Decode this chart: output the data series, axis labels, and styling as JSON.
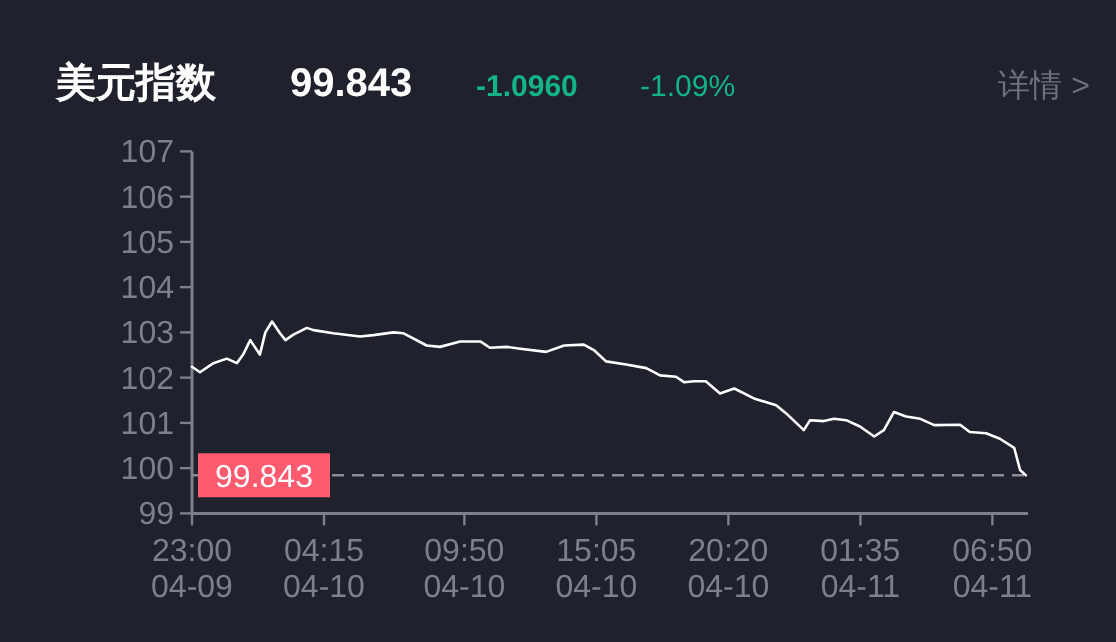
{
  "chart_data": {
    "type": "line",
    "title": "美元指数",
    "annotations": [
      "99.843",
      "-1.0960",
      "-1.09%",
      "详情 >"
    ],
    "x": [
      "--04-09T23:00",
      "--04-09T23:19",
      "--04-09T23:51",
      "--04-10T00:23",
      "--04-10T00:47",
      "--04-10T01:02",
      "--04-10T01:19",
      "--04-10T01:42",
      "--04-10T01:55",
      "--04-10T02:11",
      "--04-10T02:30",
      "--04-10T02:43",
      "--04-10T03:02",
      "--04-10T03:34",
      "--04-10T03:50",
      "--04-10T04:37",
      "--04-10T05:41",
      "--04-10T06:13",
      "--04-10T07:01",
      "--04-10T07:25",
      "--04-10T08:20",
      "--04-10T08:52",
      "--04-10T09:40",
      "--04-10T10:28",
      "--04-10T10:51",
      "--04-10T11:31",
      "--04-10T12:03",
      "--04-10T13:05",
      "--04-10T13:48",
      "--04-10T14:35",
      "--04-10T14:59",
      "--04-10T15:28",
      "--04-10T16:16",
      "--04-10T17:04",
      "--04-10T17:37",
      "--04-10T18:15",
      "--04-10T18:34",
      "--04-10T18:58",
      "--04-10T19:26",
      "--04-10T20:00",
      "--04-10T20:34",
      "--04-10T21:21",
      "--04-10T22:14",
      "--04-10T22:38",
      "--04-10T23:20",
      "--04-10T23:35",
      "--04-11T00:08",
      "--04-11T00:32",
      "--04-11T01:01",
      "--04-11T01:34",
      "--04-11T02:08",
      "--04-11T02:31",
      "--04-11T02:55",
      "--04-11T03:24",
      "--04-11T03:58",
      "--04-11T04:31",
      "--04-11T05:33",
      "--04-11T05:56",
      "--04-11T06:35",
      "--04-11T07:08",
      "--04-11T07:42",
      "--04-11T07:56",
      "--04-11T08:10"
    ],
    "series": [
      {
        "color": "#ffffff",
        "values": [
          102.24,
          102.12,
          102.32,
          102.42,
          102.32,
          102.51,
          102.83,
          102.51,
          103.0,
          103.24,
          102.98,
          102.83,
          102.95,
          103.1,
          103.05,
          102.98,
          102.91,
          102.94,
          103.0,
          102.98,
          102.71,
          102.68,
          102.8,
          102.8,
          102.66,
          102.68,
          102.64,
          102.57,
          102.71,
          102.73,
          102.61,
          102.36,
          102.29,
          102.21,
          102.05,
          102.02,
          101.9,
          101.92,
          101.92,
          101.65,
          101.76,
          101.54,
          101.39,
          101.21,
          100.84,
          101.06,
          101.04,
          101.09,
          101.06,
          100.92,
          100.7,
          100.84,
          101.24,
          101.14,
          101.09,
          100.95,
          100.96,
          100.8,
          100.77,
          100.65,
          100.45,
          99.96,
          99.84
        ]
      }
    ],
    "xlim": [
      "--04-09T23:00",
      "--04-11T08:15"
    ],
    "xticks": [
      {
        "value": "--04-09T23:00",
        "label": "23:00\n04-09"
      },
      {
        "value": "--04-10T04:15",
        "label": "04:15\n04-10"
      },
      {
        "value": "--04-10T09:50",
        "label": "09:50\n04-10"
      },
      {
        "value": "--04-10T15:05",
        "label": "15:05\n04-10"
      },
      {
        "value": "--04-10T20:20",
        "label": "20:20\n04-10"
      },
      {
        "value": "--04-11T01:35",
        "label": "01:35\n04-11"
      },
      {
        "value": "--04-11T06:50",
        "label": "06:50\n04-11"
      }
    ],
    "ylim": [
      99,
      107
    ],
    "yticks": [
      99,
      100,
      101,
      102,
      103,
      104,
      105,
      106,
      107
    ],
    "ref_lines": [
      {
        "axis": "y",
        "value": 99.843,
        "label": "99.843",
        "color": "#8a8c95",
        "line_style": "dashed"
      }
    ],
    "grid": false,
    "line_style": "solid"
  }
}
